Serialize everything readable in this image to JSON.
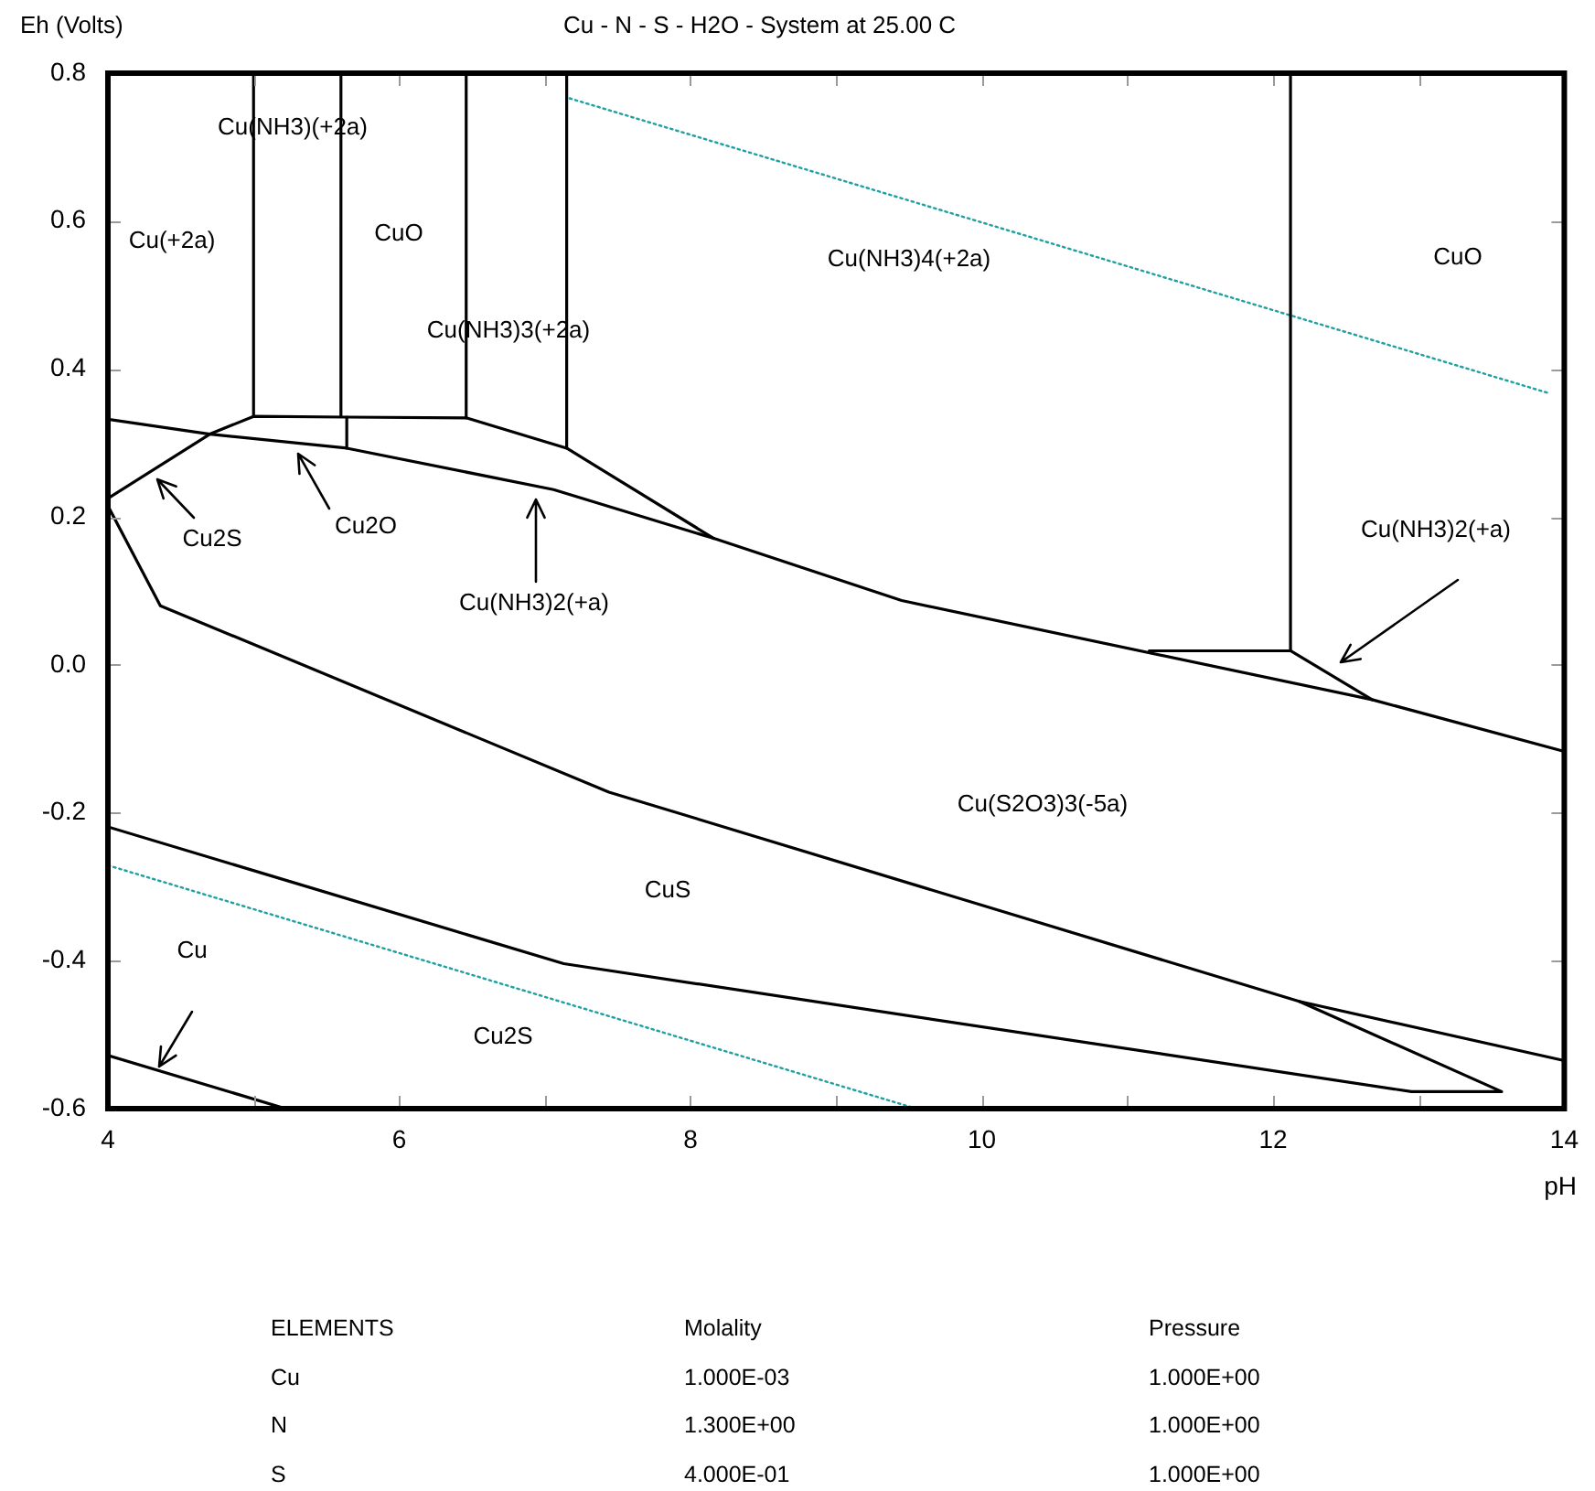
{
  "chart_data": {
    "type": "line",
    "title": "Cu - N - S - H2O - System at 25.00 C",
    "xlabel": "pH",
    "ylabel": "Eh (Volts)",
    "xlim": [
      4,
      14
    ],
    "ylim": [
      -0.6,
      0.8
    ],
    "xticks": [
      4,
      {
        "value": 5,
        "label": null
      },
      6,
      {
        "value": 7,
        "label": null
      },
      8,
      {
        "value": 9,
        "label": null
      },
      10,
      {
        "value": 11,
        "label": null
      },
      12,
      {
        "value": 13,
        "label": null
      },
      14
    ],
    "yticks": [
      -0.6,
      -0.4,
      -0.2,
      {
        "value": 0,
        "label": "0.0"
      },
      0.2,
      0.4,
      0.6,
      0.8
    ],
    "grid": false,
    "legend": false,
    "marker": "none",
    "line_style": "solid",
    "series": [
      {
        "color": "#000000",
        "x": [
          4,
          4.7,
          5.64,
          7.06,
          8.16,
          9.45,
          12.68,
          14
        ],
        "values": [
          0.332,
          0.312,
          0.293,
          0.237,
          0.171,
          0.087,
          -0.047,
          -0.117
        ]
      },
      {
        "color": "#000000",
        "x": [
          4,
          4.7,
          5.0,
          5.64,
          6.46,
          7.15,
          8.16
        ],
        "values": [
          0.225,
          0.312,
          0.336,
          0.335,
          0.334,
          0.293,
          0.171
        ]
      },
      {
        "color": "#000000",
        "x": [
          5.64,
          5.64
        ],
        "values": [
          0.335,
          0.293
        ]
      },
      {
        "color": "#000000",
        "x": [
          5.0,
          5.0
        ],
        "values": [
          0.8,
          0.336
        ]
      },
      {
        "color": "#000000",
        "x": [
          5.6,
          5.6
        ],
        "values": [
          0.8,
          0.336
        ]
      },
      {
        "color": "#000000",
        "x": [
          6.46,
          6.46
        ],
        "values": [
          0.8,
          0.334
        ]
      },
      {
        "color": "#000000",
        "x": [
          7.15,
          7.15
        ],
        "values": [
          0.8,
          0.293
        ]
      },
      {
        "color": "#000000",
        "x": [
          12.12,
          12.12
        ],
        "values": [
          0.8,
          0.019
        ]
      },
      {
        "color": "#000000",
        "x": [
          11.15,
          12.12,
          12.68
        ],
        "values": [
          0.019,
          0.019,
          -0.047
        ]
      },
      {
        "color": "#000000",
        "x": [
          4,
          4.36,
          7.44,
          12.18,
          14
        ],
        "values": [
          0.215,
          0.08,
          -0.172,
          -0.455,
          -0.535
        ]
      },
      {
        "color": "#000000",
        "x": [
          4,
          7.13,
          12.95,
          13.57,
          12.18
        ],
        "values": [
          -0.219,
          -0.404,
          -0.577,
          -0.577,
          -0.455
        ]
      },
      {
        "color": "#000000",
        "x": [
          4,
          5.22
        ],
        "values": [
          -0.528,
          -0.6
        ]
      },
      {
        "color": "#20a0a0",
        "line_style": "dotted",
        "x": [
          7.17,
          13.9
        ],
        "values": [
          0.766,
          0.367
        ]
      },
      {
        "color": "#20a0a0",
        "line_style": "dotted",
        "x": [
          4,
          9.55
        ],
        "values": [
          -0.271,
          -0.6
        ]
      }
    ],
    "annotations": [
      "Cu(NH3)(+2a)",
      "Cu(+2a)",
      "CuO",
      "Cu(NH3)3(+2a)",
      "Cu(NH3)4(+2a)",
      "CuO",
      "Cu(NH3)2(+a)",
      "Cu2S",
      "Cu2O",
      "Cu(NH3)2(+a)",
      "Cu(S2O3)3(-5a)",
      "CuS",
      "Cu",
      "Cu2S",
      "ELEMENTS",
      "Molality",
      "Pressure",
      "Cu",
      "1.000E-03",
      "1.000E+00",
      "N",
      "1.300E+00",
      "1.000E+00",
      "S",
      "4.000E-01",
      "1.000E+00"
    ]
  }
}
